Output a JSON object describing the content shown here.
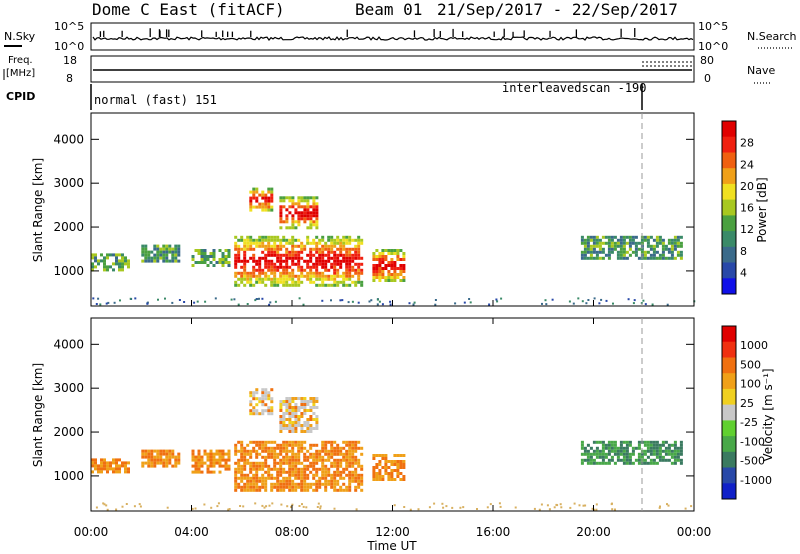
{
  "header": {
    "title": "Dome C East (fitACF)",
    "beam": "Beam 01",
    "date_range": "21/Sep/2017 - 22/Sep/2017"
  },
  "summary_panels": {
    "nsky_label": "N.Sky",
    "nsky_ticks": [
      "10^5",
      "10^0"
    ],
    "nsearch_label": "N.Search",
    "nsearch_ticks": [
      "10^5",
      "10^0"
    ],
    "freq_label_1": "Freq.",
    "freq_label_2": "[MHz]",
    "freq_ticks": [
      "18",
      "8"
    ],
    "nave_label": "Nave",
    "nave_ticks": [
      "80",
      "0"
    ],
    "cpid_label": "CPID",
    "cpid_segments": [
      {
        "name": "normal (fast) 151",
        "start_hour": 0,
        "end_hour": 21.9
      },
      {
        "name": "interleavedscan -190",
        "start_hour": 21.9,
        "end_hour": 24
      }
    ]
  },
  "chart_data": [
    {
      "type": "heatmap",
      "name": "power",
      "ylabel": "Slant Range [km]",
      "ylim": [
        200,
        4600
      ],
      "yticks": [
        "4000",
        "3000",
        "2000",
        "1000"
      ],
      "colorbar_label": "Power [dB]",
      "colorbar_ticks": [
        "28",
        "24",
        "20",
        "16",
        "12",
        "8",
        "4"
      ],
      "colorbar_colors": [
        "#1010e8",
        "#2848a8",
        "#3a6a8a",
        "#3a8a68",
        "#4aa040",
        "#a8c820",
        "#f0e020",
        "#f0a018",
        "#f06010",
        "#f02010",
        "#e00000"
      ],
      "x_hours_range": [
        0,
        24
      ],
      "echo_regions": [
        {
          "x0": 0.0,
          "x1": 1.5,
          "r0": 1000,
          "r1": 1400
        },
        {
          "x0": 2.0,
          "x1": 3.5,
          "r0": 1200,
          "r1": 1600
        },
        {
          "x0": 4.0,
          "x1": 5.5,
          "r0": 1100,
          "r1": 1500
        },
        {
          "x0": 5.7,
          "x1": 10.8,
          "r0": 700,
          "r1": 1800
        },
        {
          "x0": 6.3,
          "x1": 7.2,
          "r0": 2400,
          "r1": 2900
        },
        {
          "x0": 7.5,
          "x1": 9.0,
          "r0": 2000,
          "r1": 2700
        },
        {
          "x0": 11.2,
          "x1": 12.5,
          "r0": 800,
          "r1": 1500
        },
        {
          "x0": 19.5,
          "x1": 23.5,
          "r0": 1300,
          "r1": 1800
        }
      ]
    },
    {
      "type": "heatmap",
      "name": "velocity",
      "ylabel": "Slant Range [km]",
      "ylim": [
        200,
        4600
      ],
      "yticks": [
        "4000",
        "3000",
        "2000",
        "1000"
      ],
      "colorbar_label": "Velocity [m s⁻¹]",
      "colorbar_ticks": [
        "1000",
        "500",
        "100",
        "25",
        "-25",
        "-100",
        "-500",
        "-1000"
      ],
      "colorbar_colors": [
        "#1020c8",
        "#2848a8",
        "#3a7a60",
        "#48a848",
        "#60d030",
        "#c8c8c8",
        "#f0d020",
        "#f0a018",
        "#f07010",
        "#f03010",
        "#e00000"
      ],
      "x_hours_range": [
        0,
        24
      ],
      "echo_regions": [
        {
          "x0": 0.0,
          "x1": 1.5,
          "r0": 1100,
          "r1": 1400
        },
        {
          "x0": 2.0,
          "x1": 3.5,
          "r0": 1200,
          "r1": 1600
        },
        {
          "x0": 4.0,
          "x1": 5.5,
          "r0": 1100,
          "r1": 1600
        },
        {
          "x0": 5.7,
          "x1": 10.8,
          "r0": 700,
          "r1": 1800
        },
        {
          "x0": 6.3,
          "x1": 7.2,
          "r0": 2400,
          "r1": 3000
        },
        {
          "x0": 7.5,
          "x1": 9.0,
          "r0": 2000,
          "r1": 2800
        },
        {
          "x0": 11.2,
          "x1": 12.5,
          "r0": 900,
          "r1": 1500
        },
        {
          "x0": 19.5,
          "x1": 23.5,
          "r0": 1300,
          "r1": 1800
        }
      ]
    }
  ],
  "x_axis": {
    "ticks": [
      "00:00",
      "04:00",
      "08:00",
      "12:00",
      "16:00",
      "20:00",
      "00:00"
    ],
    "xlabel": "Time UT"
  }
}
